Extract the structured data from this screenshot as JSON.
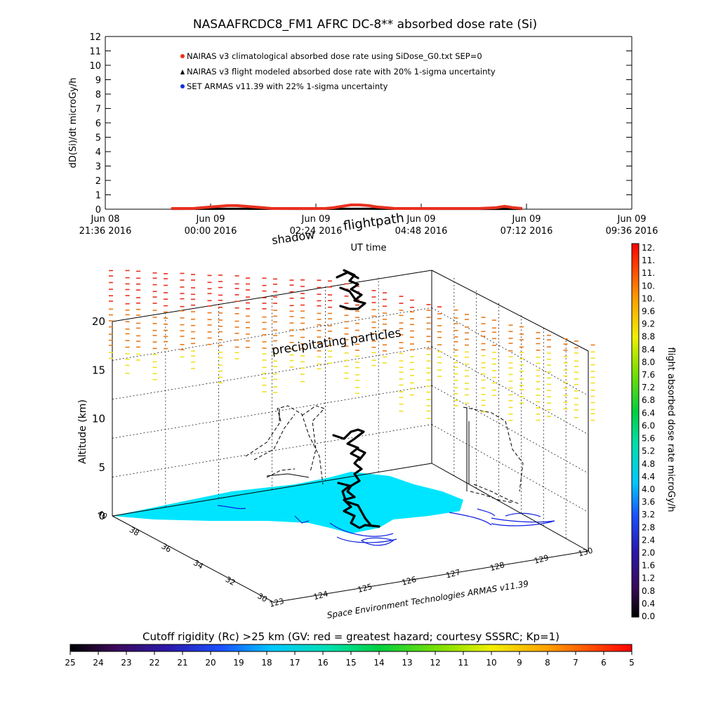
{
  "chart_data": [
    {
      "type": "line",
      "title": "NASAAFRCDC8_FM1 AFRC DC-8** absorbed dose rate (Si)",
      "ylabel": "dD(Si)/dt microGy/h",
      "xlabel": "UT time",
      "ylim": [
        0,
        12
      ],
      "y_ticks": [
        "0",
        "1",
        "2",
        "3",
        "4",
        "5",
        "6",
        "7",
        "8",
        "9",
        "10",
        "11",
        "12"
      ],
      "x_ticks": [
        {
          "top": "Jun 08",
          "bottom": "21:36 2016"
        },
        {
          "top": "Jun 09",
          "bottom": "00:00 2016"
        },
        {
          "top": "Jun 09",
          "bottom": "02:24 2016"
        },
        {
          "top": "Jun 09",
          "bottom": "04:48 2016"
        },
        {
          "top": "Jun 09",
          "bottom": "07:12 2016"
        },
        {
          "top": "Jun 09",
          "bottom": "09:36 2016"
        }
      ],
      "x_hours_since_first_tick_range": [
        0,
        12
      ],
      "legend": [
        {
          "label": "NAIRAS v3 climatological absorbed dose rate using SiDose_G0.txt SEP=0",
          "color": "#e8301e",
          "marker": "circle"
        },
        {
          "label": "NAIRAS v3 flight modeled absorbed dose rate with 20% 1-sigma uncertainty",
          "color": "#000000",
          "marker": "triangle"
        },
        {
          "label": "SET ARMAS v11.39 with 22% 1-sigma uncertainty",
          "color": "#1030e0",
          "marker": "circle"
        }
      ],
      "legend_position": "top-left",
      "series": [
        {
          "name": "NAIRAS v3 climatological absorbed dose rate using SiDose_G0.txt SEP=0",
          "x": [
            1.5,
            2.0,
            2.2,
            2.4,
            2.6,
            2.8,
            3.0,
            3.2,
            3.4,
            3.6,
            3.8,
            4.0,
            4.5,
            5.0,
            5.2,
            5.4,
            5.6,
            5.8,
            6.0,
            6.2,
            6.4,
            6.6,
            7.0,
            7.5,
            8.0,
            8.5,
            8.9,
            9.1,
            9.3,
            9.5
          ],
          "values": [
            0.05,
            0.05,
            0.1,
            0.15,
            0.2,
            0.25,
            0.25,
            0.2,
            0.15,
            0.1,
            0.05,
            0.05,
            0.05,
            0.05,
            0.1,
            0.2,
            0.3,
            0.3,
            0.25,
            0.15,
            0.1,
            0.05,
            0.05,
            0.05,
            0.05,
            0.05,
            0.1,
            0.2,
            0.1,
            0.05
          ]
        },
        {
          "name": "NAIRAS v3 flight modeled absorbed dose rate with 20% 1-sigma uncertainty",
          "x": [
            1.5,
            3.0,
            4.5,
            6.0,
            7.5,
            9.5
          ],
          "values": [
            0.02,
            0.03,
            0.02,
            0.03,
            0.02,
            0.02
          ]
        }
      ]
    },
    {
      "type": "scatter",
      "xlabel": "Space Environment Technologies ARMAS v11.39",
      "ylabel": "Altitude (km)",
      "z_ticks": [
        "0",
        "5",
        "10",
        "15",
        "20"
      ],
      "lon_ticks": [
        "123",
        "124",
        "125",
        "126",
        "127",
        "128",
        "129",
        "130"
      ],
      "lat_ticks": [
        "30",
        "32",
        "34",
        "36",
        "38",
        "40"
      ],
      "annotations": [
        "shadow",
        "flightpath",
        "precipitating particles"
      ],
      "colorbar": {
        "label": "flight absorbed dose rate microGy/h",
        "ticks": [
          "0.0",
          "0.4",
          "0.8",
          "1.2",
          "1.6",
          "2.0",
          "2.4",
          "2.8",
          "3.2",
          "3.6",
          "4.0",
          "4.4",
          "4.8",
          "5.2",
          "5.6",
          "6.0",
          "6.4",
          "6.8",
          "7.2",
          "7.6",
          "8.0",
          "8.4",
          "8.8",
          "9.2",
          "9.6",
          "10.",
          "10.",
          "11.",
          "11.",
          "12."
        ]
      }
    },
    {
      "type": "heatmap",
      "title": "Cutoff rigidity (Rc) >25 km (GV: red = greatest hazard; courtesy SSSRC; Kp=1)",
      "colorbar_ticks": [
        "25",
        "24",
        "23",
        "22",
        "21",
        "20",
        "19",
        "18",
        "17",
        "16",
        "15",
        "14",
        "13",
        "12",
        "11",
        "10",
        "9",
        "8",
        "7",
        "6",
        "5"
      ]
    }
  ],
  "colors": {
    "sea": "#00e5ff",
    "contour": "#1020e0",
    "red": "#e8301e",
    "orange": "#e87a1a",
    "yellow": "#f0e020"
  }
}
